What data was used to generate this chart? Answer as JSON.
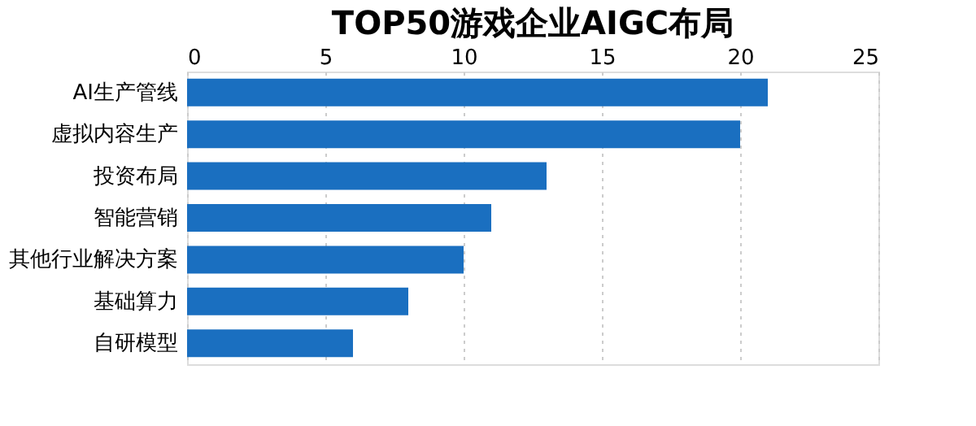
{
  "chart_data": {
    "type": "bar",
    "orientation": "horizontal",
    "title": "TOP50游戏企业AIGC布局",
    "categories": [
      "AI生产管线",
      "虚拟内容生产",
      "投资布局",
      "智能营销",
      "其他行业解决方案",
      "基础算力",
      "自研模型"
    ],
    "series": [
      {
        "color": "#1a6fc0",
        "values": [
          21,
          20,
          13,
          11,
          10,
          8,
          6
        ]
      }
    ],
    "xlim": [
      0,
      25
    ],
    "xticks": [
      0,
      5,
      10,
      15,
      20,
      25
    ],
    "grid": "x",
    "legend": false
  }
}
